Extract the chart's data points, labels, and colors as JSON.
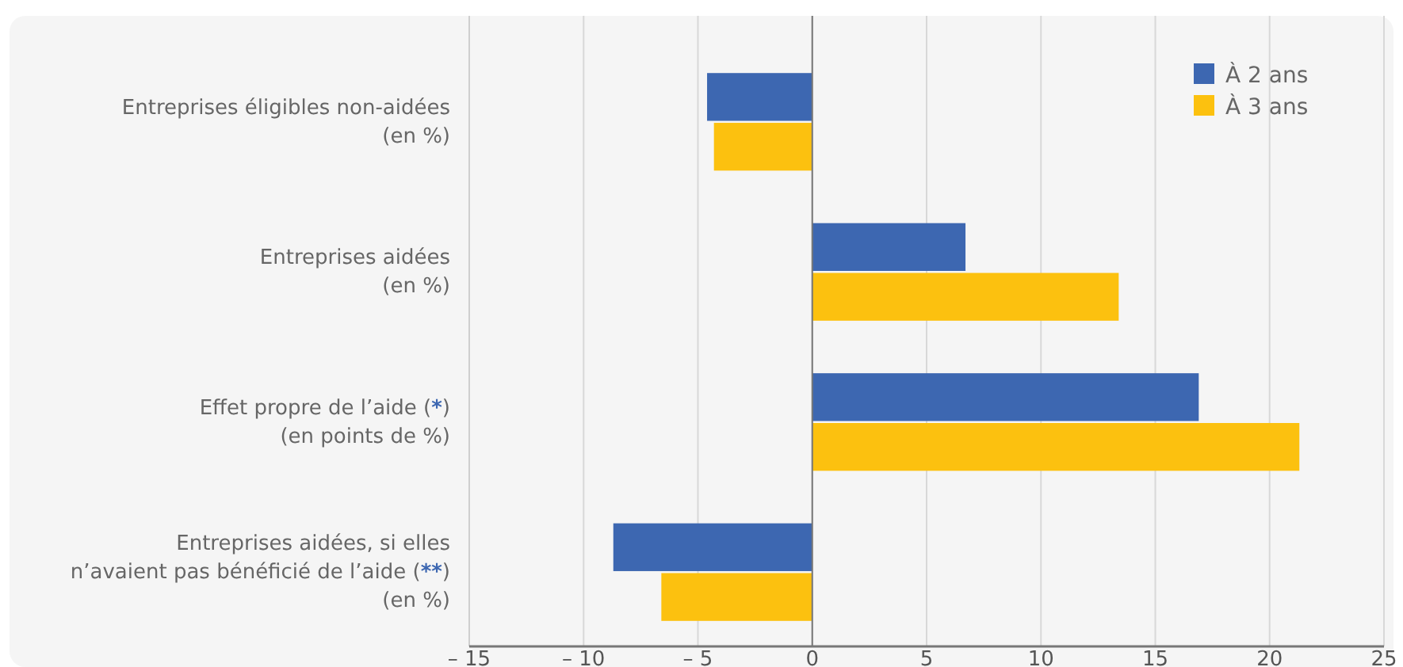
{
  "chart_data": {
    "type": "bar",
    "orientation": "horizontal",
    "categories": [
      "Entreprises éligibles non-aidées\n(en %)",
      "Entreprises aidées\n(en %)",
      "Effet propre de l’aide (*)\n(en points de %)",
      "Entreprises aidées, si elles\nn’avaient pas bénéficié de l’aide (**)\n(en %)"
    ],
    "series": [
      {
        "name": "À 2 ans",
        "color": "#3d67b1",
        "values": [
          -4.6,
          6.7,
          16.9,
          -8.7
        ]
      },
      {
        "name": "À 3 ans",
        "color": "#fcc10f",
        "values": [
          -4.3,
          13.4,
          21.3,
          -6.6
        ]
      }
    ],
    "xlim": [
      -15,
      25
    ],
    "xticks": [
      {
        "value": -15,
        "label": "– 15"
      },
      {
        "value": -10,
        "label": "– 10"
      },
      {
        "value": -5,
        "label": "– 5"
      },
      0,
      5,
      10,
      15,
      20,
      25
    ],
    "grid": "x",
    "legend": "top right"
  }
}
